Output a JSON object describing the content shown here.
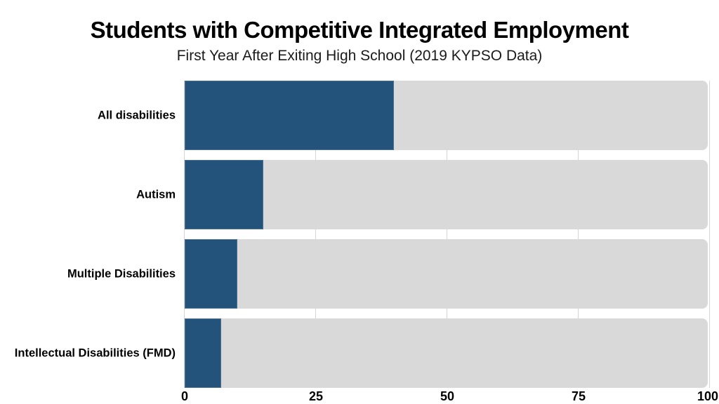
{
  "header": {
    "title": "Students with Competitive Integrated Employment",
    "subtitle": "First Year After Exiting High School (2019 KYPSO Data)"
  },
  "colors": {
    "bar_fill": "#23527a",
    "bar_track": "#d9d9d9",
    "gridline": "#d5d5d5",
    "text": "#000000",
    "background": "#ffffff"
  },
  "chart_data": {
    "type": "bar",
    "orientation": "horizontal",
    "title": "Students with Competitive Integrated Employment",
    "subtitle": "First Year After Exiting High School (2019 KYPSO Data)",
    "categories": [
      "All disabilities",
      "Autism",
      "Multiple Disabilities",
      "Intellectual Disabilities (FMD)"
    ],
    "values": [
      40,
      15,
      10,
      7
    ],
    "unit": "percent",
    "xlabel": "",
    "ylabel": "",
    "xlim": [
      0,
      100
    ],
    "xticks": [
      0,
      25,
      50,
      75,
      100
    ],
    "grid": true,
    "legend": false
  }
}
